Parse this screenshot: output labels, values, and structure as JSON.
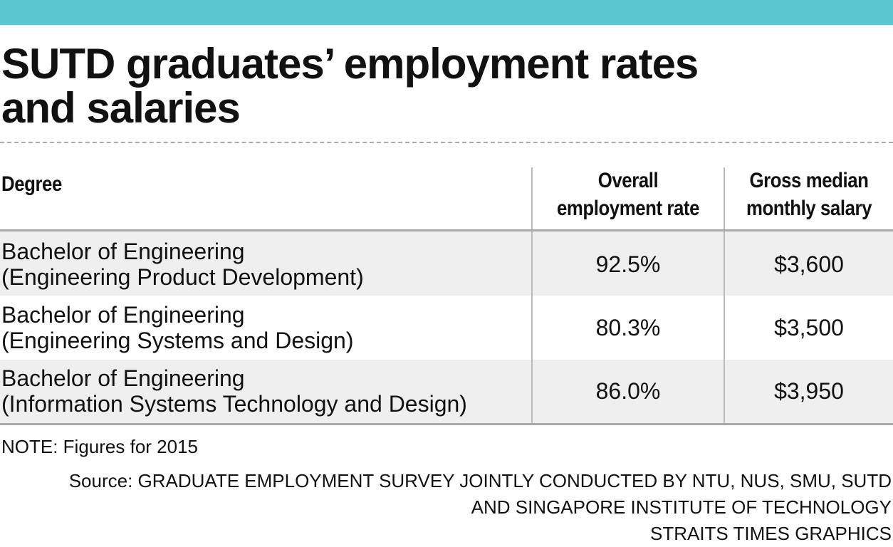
{
  "title_lines": [
    "SUTD graduates’ employment rates",
    "and salaries"
  ],
  "table": {
    "headers": [
      [
        "Degree"
      ],
      [
        "Overall",
        "employment rate"
      ],
      [
        "Gross median",
        "monthly salary"
      ]
    ],
    "rows": [
      [
        [
          "Bachelor of Engineering",
          "(Engineering Product Development)"
        ],
        "92.5%",
        "$3,600"
      ],
      [
        [
          "Bachelor of Engineering",
          "(Engineering Systems and Design)"
        ],
        "80.3%",
        "$3,500"
      ],
      [
        [
          "Bachelor of Engineering",
          "(Information Systems Technology and Design)"
        ],
        "86.0%",
        "$3,950"
      ]
    ]
  },
  "note": "NOTE: Figures for 2015",
  "source_lines": [
    "Source: GRADUATE EMPLOYMENT SURVEY JOINTLY CONDUCTED BY NTU, NUS, SMU, SUTD",
    "AND SINGAPORE INSTITUTE OF TECHNOLOGY"
  ],
  "credit": "STRAITS TIMES GRAPHICS"
}
